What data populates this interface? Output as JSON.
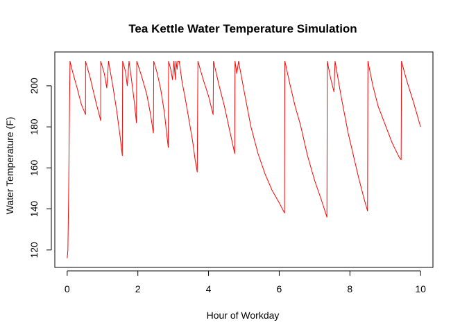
{
  "chart_data": {
    "type": "line",
    "title": "Tea Kettle Water Temperature Simulation",
    "xlabel": "Hour of Workday",
    "ylabel": "Water Temperature (F)",
    "xlim": [
      -0.35,
      10.35
    ],
    "ylim": [
      111.5,
      216.5
    ],
    "x_ticks": [
      0,
      2,
      4,
      6,
      8,
      10
    ],
    "y_ticks": [
      120,
      140,
      160,
      180,
      200
    ],
    "grid": false,
    "box": true,
    "series": [
      {
        "color": "#ff0000",
        "points": [
          [
            0.0,
            116
          ],
          [
            0.02,
            120
          ],
          [
            0.04,
            146
          ],
          [
            0.06,
            180
          ],
          [
            0.08,
            212
          ],
          [
            0.15,
            207
          ],
          [
            0.28,
            199
          ],
          [
            0.4,
            191
          ],
          [
            0.52,
            186
          ],
          [
            0.52,
            212
          ],
          [
            0.65,
            204
          ],
          [
            0.8,
            193
          ],
          [
            0.95,
            183
          ],
          [
            0.95,
            212
          ],
          [
            1.05,
            206
          ],
          [
            1.12,
            199
          ],
          [
            1.17,
            212
          ],
          [
            1.3,
            199
          ],
          [
            1.4,
            188
          ],
          [
            1.5,
            175
          ],
          [
            1.56,
            166
          ],
          [
            1.57,
            212
          ],
          [
            1.65,
            207
          ],
          [
            1.7,
            200
          ],
          [
            1.75,
            212
          ],
          [
            1.82,
            203
          ],
          [
            1.9,
            192
          ],
          [
            1.96,
            182
          ],
          [
            1.97,
            212
          ],
          [
            2.1,
            205
          ],
          [
            2.25,
            196
          ],
          [
            2.35,
            187
          ],
          [
            2.44,
            177
          ],
          [
            2.45,
            212
          ],
          [
            2.55,
            206
          ],
          [
            2.65,
            198
          ],
          [
            2.75,
            187
          ],
          [
            2.82,
            176
          ],
          [
            2.86,
            170
          ],
          [
            2.87,
            212
          ],
          [
            2.93,
            208
          ],
          [
            2.98,
            203
          ],
          [
            3.02,
            212
          ],
          [
            3.06,
            203
          ],
          [
            3.08,
            212
          ],
          [
            3.11,
            208
          ],
          [
            3.13,
            212
          ],
          [
            3.17,
            212
          ],
          [
            3.25,
            202
          ],
          [
            3.35,
            193
          ],
          [
            3.45,
            183
          ],
          [
            3.55,
            173
          ],
          [
            3.62,
            164
          ],
          [
            3.68,
            158
          ],
          [
            3.7,
            212
          ],
          [
            3.85,
            203
          ],
          [
            4.0,
            195
          ],
          [
            4.13,
            186
          ],
          [
            4.14,
            212
          ],
          [
            4.3,
            200
          ],
          [
            4.45,
            190
          ],
          [
            4.6,
            178
          ],
          [
            4.74,
            167
          ],
          [
            4.75,
            212
          ],
          [
            4.8,
            206
          ],
          [
            4.85,
            212
          ],
          [
            5.0,
            198
          ],
          [
            5.2,
            180
          ],
          [
            5.4,
            167
          ],
          [
            5.6,
            157
          ],
          [
            5.8,
            149
          ],
          [
            6.0,
            143
          ],
          [
            6.15,
            138
          ],
          [
            6.16,
            212
          ],
          [
            6.3,
            201
          ],
          [
            6.45,
            190
          ],
          [
            6.6,
            181
          ],
          [
            6.8,
            166
          ],
          [
            7.0,
            154
          ],
          [
            7.2,
            144
          ],
          [
            7.35,
            136
          ],
          [
            7.36,
            212
          ],
          [
            7.45,
            204
          ],
          [
            7.55,
            197
          ],
          [
            7.58,
            212
          ],
          [
            7.75,
            195
          ],
          [
            7.95,
            177
          ],
          [
            8.1,
            166
          ],
          [
            8.25,
            155
          ],
          [
            8.4,
            145
          ],
          [
            8.5,
            139
          ],
          [
            8.51,
            212
          ],
          [
            8.65,
            200
          ],
          [
            8.8,
            190
          ],
          [
            9.0,
            181
          ],
          [
            9.2,
            172
          ],
          [
            9.4,
            165
          ],
          [
            9.45,
            164
          ],
          [
            9.46,
            212
          ],
          [
            9.6,
            203
          ],
          [
            9.8,
            192
          ],
          [
            10.0,
            180
          ]
        ]
      }
    ]
  }
}
